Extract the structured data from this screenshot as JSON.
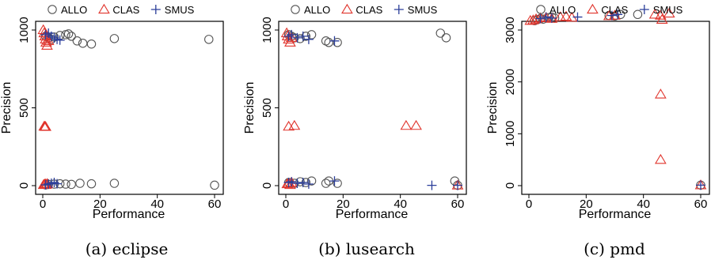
{
  "chart_data": [
    {
      "type": "scatter",
      "caption": "(a) eclipse",
      "xlabel": "Performance",
      "ylabel": "Precision",
      "xlim": [
        0,
        60
      ],
      "ylim": [
        0,
        1000
      ],
      "xticks": [
        0,
        20,
        40,
        60
      ],
      "yticks": [
        0,
        500,
        1000
      ],
      "grid": false,
      "legend_position": "top",
      "series": [
        {
          "name": "ALLO",
          "marker": "circle",
          "color": "#555555",
          "x": [
            1,
            2,
            3,
            4,
            6,
            8,
            9,
            10,
            12,
            14,
            17,
            25,
            58,
            1,
            2,
            4,
            6,
            8,
            10,
            13,
            17,
            25,
            60
          ],
          "y": [
            960,
            950,
            940,
            955,
            965,
            970,
            975,
            960,
            930,
            915,
            910,
            945,
            940,
            5,
            8,
            10,
            12,
            10,
            8,
            15,
            12,
            15,
            3
          ]
        },
        {
          "name": "CLAS",
          "marker": "triangle",
          "color": "#e0332b",
          "x": [
            0.2,
            0.5,
            0.8,
            1,
            1.2,
            1.5,
            2,
            0.5,
            0.8,
            1,
            0.3,
            0.6,
            0.9,
            1.2,
            1.6
          ],
          "y": [
            1000,
            980,
            960,
            940,
            920,
            900,
            930,
            380,
            380,
            378,
            5,
            8,
            10,
            6,
            12
          ]
        },
        {
          "name": "SMUS",
          "marker": "plus",
          "color": "#2b3e9a",
          "x": [
            1,
            2,
            3,
            4,
            5,
            6,
            1,
            2,
            3,
            4,
            5
          ],
          "y": [
            970,
            980,
            960,
            950,
            940,
            935,
            5,
            10,
            15,
            20,
            12
          ]
        }
      ]
    },
    {
      "type": "scatter",
      "caption": "(b) lusearch",
      "xlabel": "Performance",
      "ylabel": "Precision",
      "xlim": [
        0,
        60
      ],
      "ylim": [
        0,
        1000
      ],
      "xticks": [
        0,
        20,
        40,
        60
      ],
      "yticks": [
        0,
        500,
        1000
      ],
      "grid": false,
      "legend_position": "top",
      "series": [
        {
          "name": "ALLO",
          "marker": "circle",
          "color": "#555555",
          "x": [
            1,
            2,
            3,
            5,
            7,
            9,
            14,
            15,
            18,
            54,
            56,
            1,
            3,
            5,
            7,
            9,
            14,
            15,
            18,
            59,
            60
          ],
          "y": [
            970,
            960,
            950,
            945,
            960,
            970,
            930,
            920,
            920,
            980,
            950,
            20,
            15,
            25,
            20,
            30,
            15,
            30,
            15,
            30,
            2
          ]
        },
        {
          "name": "CLAS",
          "marker": "triangle",
          "color": "#e0332b",
          "x": [
            0.3,
            0.6,
            1,
            1.5,
            2,
            1,
            3,
            42,
            45.5,
            0.5,
            1,
            1.5,
            2,
            60
          ],
          "y": [
            980,
            960,
            940,
            920,
            950,
            380,
            385,
            385,
            385,
            10,
            15,
            5,
            20,
            2
          ]
        },
        {
          "name": "SMUS",
          "marker": "plus",
          "color": "#2b3e9a",
          "x": [
            1,
            2,
            4,
            6,
            8,
            17,
            1,
            2,
            4,
            6,
            8,
            17,
            51,
            60
          ],
          "y": [
            960,
            970,
            950,
            960,
            940,
            930,
            20,
            25,
            15,
            20,
            10,
            30,
            2,
            2
          ]
        }
      ]
    },
    {
      "type": "scatter",
      "caption": "(c) pmd",
      "xlabel": "Performance",
      "ylabel": "Precision",
      "xlim": [
        0,
        60
      ],
      "ylim": [
        0,
        3000
      ],
      "xticks": [
        0,
        20,
        40,
        60
      ],
      "yticks": [
        0,
        1000,
        2000,
        3000
      ],
      "grid": false,
      "legend_position": "top",
      "series": [
        {
          "name": "ALLO",
          "marker": "circle",
          "color": "#555555",
          "x": [
            2,
            3,
            4,
            5,
            7,
            8,
            9,
            28,
            30,
            32,
            38,
            60
          ],
          "y": [
            3180,
            3200,
            3220,
            3210,
            3240,
            3250,
            3230,
            3280,
            3270,
            3300,
            3300,
            10
          ]
        },
        {
          "name": "CLAS",
          "marker": "triangle",
          "color": "#e0332b",
          "x": [
            0.5,
            1.5,
            2.5,
            4,
            6,
            8,
            11,
            13,
            15,
            28,
            30,
            44,
            46,
            46.5,
            49,
            46,
            46,
            60
          ],
          "y": [
            3180,
            3190,
            3210,
            3230,
            3240,
            3220,
            3250,
            3260,
            3240,
            3270,
            3280,
            3300,
            3280,
            3200,
            3320,
            1760,
            500,
            10
          ]
        },
        {
          "name": "SMUS",
          "marker": "plus",
          "color": "#2b3e9a",
          "x": [
            4,
            6,
            8,
            17,
            29,
            31,
            60
          ],
          "y": [
            3220,
            3250,
            3230,
            3250,
            3280,
            3300,
            10
          ]
        }
      ]
    }
  ]
}
